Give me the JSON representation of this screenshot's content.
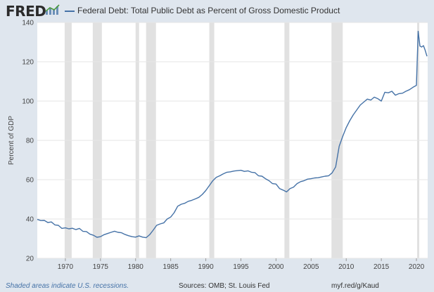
{
  "brand": {
    "logo_text": "FRED",
    "logo_icon": "chart-line-icon"
  },
  "colors": {
    "series": "#4572a7",
    "recession": "#e1e1e1",
    "grid": "#e6e6e6",
    "background": "#dfe6ee"
  },
  "footer": {
    "note": "Shaded areas indicate U.S. recessions.",
    "source": "Sources: OMB; St. Louis Fed",
    "url": "myf.red/g/Kaud"
  },
  "chart_data": {
    "type": "line",
    "title": "",
    "xlabel": "",
    "ylabel": "Percent of GDP",
    "xlim": [
      1966,
      2021.6
    ],
    "ylim": [
      20,
      140
    ],
    "grid": true,
    "legend_placement": "top-left",
    "x_ticks": [
      "1970",
      "1975",
      "1980",
      "1985",
      "1990",
      "1995",
      "2000",
      "2005",
      "2010",
      "2015",
      "2020"
    ],
    "y_ticks": [
      "20",
      "40",
      "60",
      "80",
      "100",
      "120",
      "140"
    ],
    "recessions": [
      [
        1969.9,
        1970.9
      ],
      [
        1973.9,
        1975.2
      ],
      [
        1980.0,
        1980.5
      ],
      [
        1981.5,
        1982.9
      ],
      [
        1990.5,
        1991.2
      ],
      [
        2001.2,
        2001.9
      ],
      [
        2007.9,
        2009.5
      ],
      [
        2020.1,
        2020.4
      ]
    ],
    "series": [
      {
        "name": "Federal Debt: Total Public Debt as Percent of Gross Domestic Product",
        "x": [
          1966.0,
          1966.5,
          1967.0,
          1967.5,
          1968.0,
          1968.5,
          1969.0,
          1969.5,
          1970.0,
          1970.5,
          1971.0,
          1971.5,
          1972.0,
          1972.5,
          1973.0,
          1973.5,
          1974.0,
          1974.5,
          1975.0,
          1975.5,
          1976.0,
          1976.5,
          1977.0,
          1977.5,
          1978.0,
          1978.5,
          1979.0,
          1979.5,
          1980.0,
          1980.5,
          1981.0,
          1981.5,
          1982.0,
          1982.5,
          1983.0,
          1983.5,
          1984.0,
          1984.5,
          1985.0,
          1985.5,
          1986.0,
          1986.5,
          1987.0,
          1987.5,
          1988.0,
          1988.5,
          1989.0,
          1989.5,
          1990.0,
          1990.5,
          1991.0,
          1991.5,
          1992.0,
          1992.5,
          1993.0,
          1993.5,
          1994.0,
          1994.5,
          1995.0,
          1995.5,
          1996.0,
          1996.5,
          1997.0,
          1997.5,
          1998.0,
          1998.5,
          1999.0,
          1999.5,
          2000.0,
          2000.5,
          2001.0,
          2001.5,
          2002.0,
          2002.5,
          2003.0,
          2003.5,
          2004.0,
          2004.5,
          2005.0,
          2005.5,
          2006.0,
          2006.5,
          2007.0,
          2007.5,
          2008.0,
          2008.5,
          2009.0,
          2009.5,
          2010.0,
          2010.5,
          2011.0,
          2011.5,
          2012.0,
          2012.5,
          2013.0,
          2013.5,
          2014.0,
          2014.5,
          2015.0,
          2015.5,
          2016.0,
          2016.5,
          2017.0,
          2017.5,
          2018.0,
          2018.5,
          2019.0,
          2019.5,
          2020.0,
          2020.25,
          2020.5,
          2020.75,
          2021.0,
          2021.25,
          2021.5
        ],
        "values": [
          39.8,
          39.2,
          39.3,
          38.2,
          38.5,
          37.0,
          36.8,
          35.2,
          35.5,
          35.0,
          35.3,
          34.6,
          35.2,
          33.7,
          33.6,
          32.3,
          31.7,
          30.7,
          31.0,
          32.0,
          32.6,
          33.2,
          33.8,
          33.2,
          33.0,
          32.1,
          31.5,
          31.0,
          30.8,
          31.4,
          30.8,
          30.5,
          32.0,
          34.3,
          36.8,
          37.5,
          38.0,
          40.0,
          41.0,
          43.2,
          46.5,
          47.5,
          48.0,
          49.0,
          49.5,
          50.2,
          51.0,
          52.5,
          54.5,
          57.0,
          59.5,
          61.2,
          62.0,
          63.0,
          63.8,
          64.0,
          64.4,
          64.6,
          64.8,
          64.2,
          64.5,
          63.8,
          63.6,
          62.0,
          61.8,
          60.5,
          59.5,
          58.0,
          57.8,
          55.5,
          54.7,
          53.8,
          55.5,
          56.2,
          58.0,
          59.0,
          59.5,
          60.3,
          60.5,
          60.9,
          61.0,
          61.4,
          61.8,
          62.0,
          63.5,
          66.5,
          77.0,
          82.0,
          86.5,
          90.0,
          93.0,
          95.5,
          98.0,
          99.5,
          101.0,
          100.5,
          102.0,
          101.2,
          100.0,
          104.5,
          104.2,
          105.0,
          103.0,
          103.8,
          104.0,
          105.0,
          105.8,
          107.0,
          108.0,
          135.5,
          128.0,
          127.5,
          128.2,
          125.8,
          122.8
        ]
      }
    ]
  }
}
